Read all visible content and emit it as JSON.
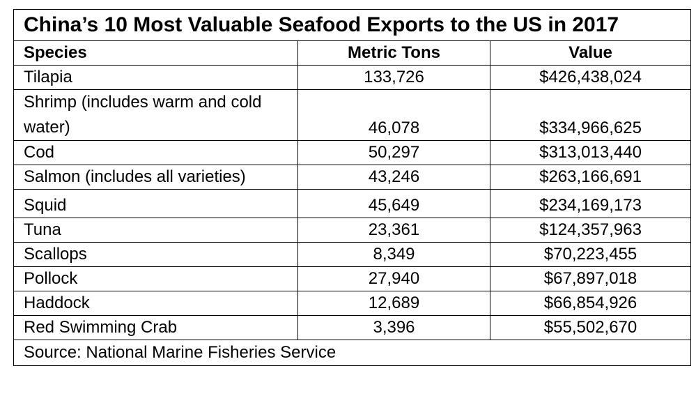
{
  "table": {
    "title": "China’s 10 Most Valuable Seafood Exports to the US in 2017",
    "headers": {
      "species": "Species",
      "metric_tons": "Metric Tons",
      "value": "Value"
    },
    "rows": [
      {
        "species": "Tilapia",
        "metric_tons": "133,726",
        "value": "$426,438,024"
      },
      {
        "species": "Shrimp (includes warm and cold water)",
        "metric_tons": "46,078",
        "value": "$334,966,625"
      },
      {
        "species": "Cod",
        "metric_tons": "50,297",
        "value": "$313,013,440"
      },
      {
        "species": "Salmon (includes all varieties)",
        "metric_tons": "43,246",
        "value": "$263,166,691"
      },
      {
        "species": "Squid",
        "metric_tons": "45,649",
        "value": "$234,169,173"
      },
      {
        "species": "Tuna",
        "metric_tons": "23,361",
        "value": "$124,357,963"
      },
      {
        "species": "Scallops",
        "metric_tons": "8,349",
        "value": "$70,223,455"
      },
      {
        "species": "Pollock",
        "metric_tons": "27,940",
        "value": "$67,897,018"
      },
      {
        "species": "Haddock",
        "metric_tons": "12,689",
        "value": "$66,854,926"
      },
      {
        "species": "Red Swimming Crab",
        "metric_tons": "3,396",
        "value": "$55,502,670"
      }
    ],
    "source": "Source: National Marine Fisheries Service"
  }
}
